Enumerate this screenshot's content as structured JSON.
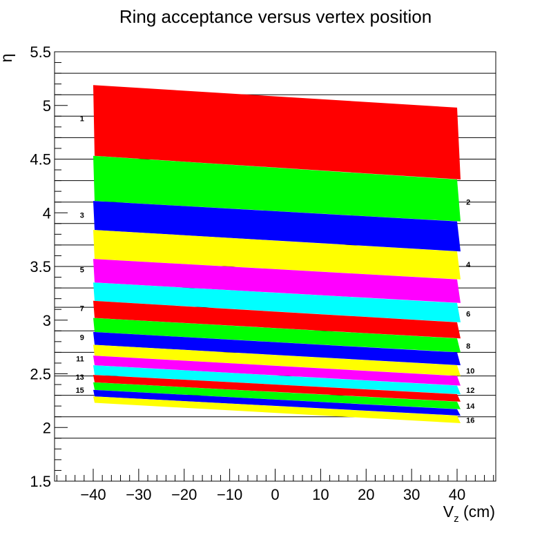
{
  "chart_data": {
    "type": "area",
    "title": "Ring acceptance versus vertex position",
    "xlabel": "V_z (cm)",
    "xlabel_main": "V",
    "xlabel_sub": "z",
    "xlabel_unit": " (cm)",
    "ylabel": "η",
    "xlim": [
      -48.5,
      48.5
    ],
    "ylim": [
      1.5,
      5.5
    ],
    "x_ticks": [
      -40,
      -30,
      -20,
      -10,
      0,
      10,
      20,
      30,
      40
    ],
    "x_tick_labels": [
      "−40",
      "−30",
      "−20",
      "−10",
      "0",
      "10",
      "20",
      "30",
      "40"
    ],
    "y_ticks": [
      1.5,
      2,
      2.5,
      3,
      3.5,
      4,
      4.5,
      5,
      5.5
    ],
    "y_tick_labels": [
      "1.5",
      "2",
      "2.5",
      "3",
      "3.5",
      "4",
      "4.5",
      "5",
      "5.5"
    ],
    "grid_y": [
      1.9,
      2.1,
      2.3,
      2.48,
      2.7,
      2.9,
      3.12,
      3.3,
      3.5,
      3.7,
      3.9,
      4.1,
      4.3,
      4.5,
      4.7,
      4.9,
      5.1,
      5.3
    ],
    "rings": [
      {
        "ring": "1",
        "color": "#ff0000",
        "vz": [
          -40,
          40
        ],
        "eta_max": [
          5.19,
          4.98
        ],
        "eta_min": [
          4.53,
          4.31
        ]
      },
      {
        "ring": "2",
        "color": "#00ff00",
        "vz": [
          -40,
          40
        ],
        "eta_max": [
          4.53,
          4.31
        ],
        "eta_min": [
          4.11,
          3.92
        ]
      },
      {
        "ring": "3",
        "color": "#0000ff",
        "vz": [
          -40,
          40
        ],
        "eta_max": [
          4.11,
          3.92
        ],
        "eta_min": [
          3.84,
          3.64
        ]
      },
      {
        "ring": "4",
        "color": "#ffff00",
        "vz": [
          -40,
          40
        ],
        "eta_max": [
          3.84,
          3.64
        ],
        "eta_min": [
          3.57,
          3.38
        ]
      },
      {
        "ring": "5",
        "color": "#ff00ff",
        "vz": [
          -40,
          40
        ],
        "eta_max": [
          3.57,
          3.38
        ],
        "eta_min": [
          3.35,
          3.16
        ]
      },
      {
        "ring": "6",
        "color": "#00ffff",
        "vz": [
          -40,
          40
        ],
        "eta_max": [
          3.35,
          3.16
        ],
        "eta_min": [
          3.18,
          2.98
        ]
      },
      {
        "ring": "7",
        "color": "#ff0000",
        "vz": [
          -40,
          40
        ],
        "eta_max": [
          3.18,
          2.98
        ],
        "eta_min": [
          3.02,
          2.83
        ]
      },
      {
        "ring": "8",
        "color": "#00ff00",
        "vz": [
          -40,
          40
        ],
        "eta_max": [
          3.02,
          2.83
        ],
        "eta_min": [
          2.89,
          2.7
        ]
      },
      {
        "ring": "9",
        "color": "#0000ff",
        "vz": [
          -40,
          40
        ],
        "eta_max": [
          2.89,
          2.7
        ],
        "eta_min": [
          2.77,
          2.58
        ]
      },
      {
        "ring": "10",
        "color": "#ffff00",
        "vz": [
          -40,
          40
        ],
        "eta_max": [
          2.77,
          2.58
        ],
        "eta_min": [
          2.67,
          2.48
        ]
      },
      {
        "ring": "11",
        "color": "#ff00ff",
        "vz": [
          -40,
          40
        ],
        "eta_max": [
          2.67,
          2.48
        ],
        "eta_min": [
          2.58,
          2.39
        ]
      },
      {
        "ring": "12",
        "color": "#00ffff",
        "vz": [
          -40,
          40
        ],
        "eta_max": [
          2.58,
          2.39
        ],
        "eta_min": [
          2.49,
          2.31
        ]
      },
      {
        "ring": "13",
        "color": "#ff0000",
        "vz": [
          -40,
          40
        ],
        "eta_max": [
          2.49,
          2.31
        ],
        "eta_min": [
          2.42,
          2.24
        ]
      },
      {
        "ring": "14",
        "color": "#00ff00",
        "vz": [
          -40,
          40
        ],
        "eta_max": [
          2.42,
          2.24
        ],
        "eta_min": [
          2.35,
          2.17
        ]
      },
      {
        "ring": "15",
        "color": "#0000ff",
        "vz": [
          -40,
          40
        ],
        "eta_max": [
          2.35,
          2.17
        ],
        "eta_min": [
          2.29,
          2.11
        ]
      },
      {
        "ring": "16",
        "color": "#ffff00",
        "vz": [
          -40,
          40
        ],
        "eta_max": [
          2.29,
          2.11
        ],
        "eta_min": [
          2.23,
          2.04
        ]
      }
    ],
    "ring_label_positions": [
      {
        "ring": "1",
        "side": "left",
        "eta": 4.88
      },
      {
        "ring": "2",
        "side": "right",
        "eta": 4.1
      },
      {
        "ring": "3",
        "side": "left",
        "eta": 3.98
      },
      {
        "ring": "4",
        "side": "right",
        "eta": 3.52
      },
      {
        "ring": "5",
        "side": "left",
        "eta": 3.47
      },
      {
        "ring": "6",
        "side": "right",
        "eta": 3.06
      },
      {
        "ring": "7",
        "side": "left",
        "eta": 3.11
      },
      {
        "ring": "8",
        "side": "right",
        "eta": 2.76
      },
      {
        "ring": "9",
        "side": "left",
        "eta": 2.84
      },
      {
        "ring": "10",
        "side": "right",
        "eta": 2.53
      },
      {
        "ring": "11",
        "side": "left",
        "eta": 2.64
      },
      {
        "ring": "12",
        "side": "right",
        "eta": 2.35
      },
      {
        "ring": "13",
        "side": "left",
        "eta": 2.47
      },
      {
        "ring": "14",
        "side": "right",
        "eta": 2.2
      },
      {
        "ring": "15",
        "side": "left",
        "eta": 2.35
      },
      {
        "ring": "16",
        "side": "right",
        "eta": 2.07
      }
    ]
  }
}
